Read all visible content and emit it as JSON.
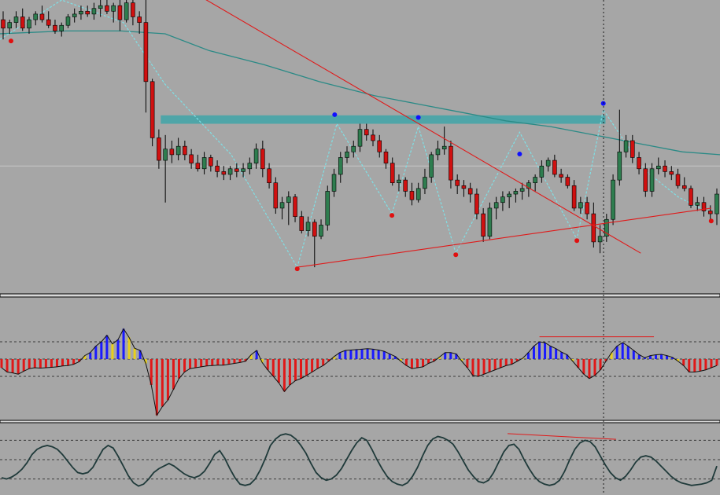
{
  "colors": {
    "background": "#a6a6a6",
    "bull": "#2e7d4f",
    "bear": "#d01010",
    "wick": "#000000",
    "ma": "#2a8a86",
    "zone": "#4fa5a8",
    "trendline": "#e01a1a",
    "zigzag": "#7fe0e6",
    "osc_blue": "#1a1aff",
    "osc_red": "#e01818",
    "osc_yellow": "#e8cf1a",
    "osc_line": "#1f3a3a",
    "fractal_top": "#1010ff",
    "fractal_bottom": "#e01010",
    "separator": "#000000",
    "crosshair": "#1a1a1a"
  },
  "chart_data": [
    {
      "type": "candlestick",
      "panel": "price",
      "y_domain": [
        0,
        100
      ],
      "candles": [
        {
          "o": 93,
          "h": 96,
          "l": 86,
          "c": 90
        },
        {
          "o": 90,
          "h": 93,
          "l": 88,
          "c": 92
        },
        {
          "o": 92,
          "h": 96,
          "l": 90,
          "c": 94
        },
        {
          "o": 94,
          "h": 97,
          "l": 89,
          "c": 90
        },
        {
          "o": 90,
          "h": 94,
          "l": 88,
          "c": 93
        },
        {
          "o": 93,
          "h": 96,
          "l": 91,
          "c": 95
        },
        {
          "o": 95,
          "h": 98,
          "l": 92,
          "c": 93
        },
        {
          "o": 93,
          "h": 96,
          "l": 90,
          "c": 91
        },
        {
          "o": 91,
          "h": 93,
          "l": 88,
          "c": 89
        },
        {
          "o": 89,
          "h": 92,
          "l": 87,
          "c": 91
        },
        {
          "o": 91,
          "h": 95,
          "l": 90,
          "c": 94
        },
        {
          "o": 94,
          "h": 97,
          "l": 92,
          "c": 95
        },
        {
          "o": 95,
          "h": 98,
          "l": 93,
          "c": 96
        },
        {
          "o": 96,
          "h": 98,
          "l": 94,
          "c": 95
        },
        {
          "o": 95,
          "h": 99,
          "l": 93,
          "c": 97
        },
        {
          "o": 97,
          "h": 100,
          "l": 94,
          "c": 98
        },
        {
          "o": 98,
          "h": 100,
          "l": 95,
          "c": 96
        },
        {
          "o": 96,
          "h": 99,
          "l": 92,
          "c": 98
        },
        {
          "o": 98,
          "h": 100,
          "l": 89,
          "c": 93
        },
        {
          "o": 93,
          "h": 100,
          "l": 92,
          "c": 99
        },
        {
          "o": 99,
          "h": 100,
          "l": 91,
          "c": 94
        },
        {
          "o": 94,
          "h": 96,
          "l": 88,
          "c": 92
        },
        {
          "o": 92,
          "h": 100,
          "l": 60,
          "c": 71
        },
        {
          "o": 71,
          "h": 72,
          "l": 48,
          "c": 51
        },
        {
          "o": 51,
          "h": 54,
          "l": 40,
          "c": 43
        },
        {
          "o": 43,
          "h": 52,
          "l": 28,
          "c": 47
        },
        {
          "o": 47,
          "h": 50,
          "l": 42,
          "c": 45
        },
        {
          "o": 45,
          "h": 51,
          "l": 43,
          "c": 48
        },
        {
          "o": 48,
          "h": 50,
          "l": 43,
          "c": 45
        },
        {
          "o": 45,
          "h": 47,
          "l": 40,
          "c": 42
        },
        {
          "o": 42,
          "h": 45,
          "l": 39,
          "c": 40
        },
        {
          "o": 40,
          "h": 46,
          "l": 38,
          "c": 44
        },
        {
          "o": 44,
          "h": 45,
          "l": 39,
          "c": 41
        },
        {
          "o": 41,
          "h": 43,
          "l": 37,
          "c": 39
        },
        {
          "o": 39,
          "h": 41,
          "l": 36,
          "c": 38
        },
        {
          "o": 38,
          "h": 41,
          "l": 36,
          "c": 40
        },
        {
          "o": 40,
          "h": 42,
          "l": 37,
          "c": 39
        },
        {
          "o": 39,
          "h": 42,
          "l": 37,
          "c": 40
        },
        {
          "o": 40,
          "h": 44,
          "l": 38,
          "c": 42
        },
        {
          "o": 42,
          "h": 49,
          "l": 40,
          "c": 47
        },
        {
          "o": 47,
          "h": 50,
          "l": 37,
          "c": 40
        },
        {
          "o": 40,
          "h": 42,
          "l": 33,
          "c": 35
        },
        {
          "o": 35,
          "h": 37,
          "l": 24,
          "c": 26
        },
        {
          "o": 26,
          "h": 30,
          "l": 22,
          "c": 28
        },
        {
          "o": 28,
          "h": 32,
          "l": 20,
          "c": 30
        },
        {
          "o": 30,
          "h": 31,
          "l": 21,
          "c": 23
        },
        {
          "o": 23,
          "h": 25,
          "l": 17,
          "c": 18
        },
        {
          "o": 18,
          "h": 23,
          "l": 16,
          "c": 21
        },
        {
          "o": 21,
          "h": 22,
          "l": 5,
          "c": 16
        },
        {
          "o": 16,
          "h": 22,
          "l": 15,
          "c": 20
        },
        {
          "o": 20,
          "h": 34,
          "l": 18,
          "c": 32
        },
        {
          "o": 32,
          "h": 40,
          "l": 30,
          "c": 38
        },
        {
          "o": 38,
          "h": 46,
          "l": 35,
          "c": 44
        },
        {
          "o": 44,
          "h": 48,
          "l": 42,
          "c": 46
        },
        {
          "o": 46,
          "h": 50,
          "l": 44,
          "c": 48
        },
        {
          "o": 48,
          "h": 56,
          "l": 46,
          "c": 54
        },
        {
          "o": 54,
          "h": 56,
          "l": 50,
          "c": 52
        },
        {
          "o": 52,
          "h": 54,
          "l": 48,
          "c": 50
        },
        {
          "o": 50,
          "h": 52,
          "l": 44,
          "c": 46
        },
        {
          "o": 46,
          "h": 47,
          "l": 40,
          "c": 42
        },
        {
          "o": 42,
          "h": 44,
          "l": 34,
          "c": 35
        },
        {
          "o": 35,
          "h": 38,
          "l": 32,
          "c": 36
        },
        {
          "o": 36,
          "h": 37,
          "l": 30,
          "c": 32
        },
        {
          "o": 32,
          "h": 35,
          "l": 27,
          "c": 29
        },
        {
          "o": 29,
          "h": 35,
          "l": 28,
          "c": 33
        },
        {
          "o": 33,
          "h": 40,
          "l": 31,
          "c": 37
        },
        {
          "o": 37,
          "h": 46,
          "l": 35,
          "c": 45
        },
        {
          "o": 45,
          "h": 50,
          "l": 43,
          "c": 47
        },
        {
          "o": 47,
          "h": 55,
          "l": 45,
          "c": 48
        },
        {
          "o": 48,
          "h": 50,
          "l": 33,
          "c": 36
        },
        {
          "o": 36,
          "h": 38,
          "l": 31,
          "c": 34
        },
        {
          "o": 34,
          "h": 36,
          "l": 30,
          "c": 33
        },
        {
          "o": 33,
          "h": 35,
          "l": 28,
          "c": 31
        },
        {
          "o": 31,
          "h": 33,
          "l": 22,
          "c": 24
        },
        {
          "o": 24,
          "h": 26,
          "l": 14,
          "c": 16
        },
        {
          "o": 16,
          "h": 28,
          "l": 15,
          "c": 26
        },
        {
          "o": 26,
          "h": 30,
          "l": 22,
          "c": 28
        },
        {
          "o": 28,
          "h": 32,
          "l": 25,
          "c": 30
        },
        {
          "o": 30,
          "h": 32,
          "l": 26,
          "c": 31
        },
        {
          "o": 31,
          "h": 33,
          "l": 28,
          "c": 32
        },
        {
          "o": 32,
          "h": 35,
          "l": 29,
          "c": 33
        },
        {
          "o": 33,
          "h": 36,
          "l": 30,
          "c": 35
        },
        {
          "o": 35,
          "h": 38,
          "l": 32,
          "c": 37
        },
        {
          "o": 37,
          "h": 43,
          "l": 35,
          "c": 41
        },
        {
          "o": 41,
          "h": 44,
          "l": 39,
          "c": 43
        },
        {
          "o": 43,
          "h": 45,
          "l": 37,
          "c": 38
        },
        {
          "o": 38,
          "h": 40,
          "l": 35,
          "c": 37
        },
        {
          "o": 37,
          "h": 38,
          "l": 33,
          "c": 34
        },
        {
          "o": 34,
          "h": 36,
          "l": 25,
          "c": 26
        },
        {
          "o": 26,
          "h": 30,
          "l": 24,
          "c": 28
        },
        {
          "o": 28,
          "h": 30,
          "l": 22,
          "c": 24
        },
        {
          "o": 24,
          "h": 28,
          "l": 12,
          "c": 14
        },
        {
          "o": 14,
          "h": 20,
          "l": 10,
          "c": 16
        },
        {
          "o": 16,
          "h": 24,
          "l": 14,
          "c": 22
        },
        {
          "o": 22,
          "h": 38,
          "l": 20,
          "c": 36
        },
        {
          "o": 36,
          "h": 61,
          "l": 34,
          "c": 46
        },
        {
          "o": 46,
          "h": 52,
          "l": 44,
          "c": 50
        },
        {
          "o": 50,
          "h": 52,
          "l": 42,
          "c": 44
        },
        {
          "o": 44,
          "h": 46,
          "l": 38,
          "c": 40
        },
        {
          "o": 40,
          "h": 42,
          "l": 30,
          "c": 32
        },
        {
          "o": 32,
          "h": 42,
          "l": 30,
          "c": 40
        },
        {
          "o": 40,
          "h": 44,
          "l": 38,
          "c": 41
        },
        {
          "o": 41,
          "h": 43,
          "l": 37,
          "c": 39
        },
        {
          "o": 39,
          "h": 41,
          "l": 36,
          "c": 38
        },
        {
          "o": 38,
          "h": 40,
          "l": 33,
          "c": 34
        },
        {
          "o": 34,
          "h": 37,
          "l": 32,
          "c": 33
        },
        {
          "o": 33,
          "h": 34,
          "l": 26,
          "c": 27
        },
        {
          "o": 27,
          "h": 30,
          "l": 25,
          "c": 28
        },
        {
          "o": 28,
          "h": 30,
          "l": 23,
          "c": 25
        },
        {
          "o": 25,
          "h": 27,
          "l": 22,
          "c": 24
        },
        {
          "o": 24,
          "h": 33,
          "l": 20,
          "c": 31
        }
      ]
    },
    {
      "type": "line",
      "panel": "price",
      "role": "moving-average",
      "points": [
        [
          0,
          88
        ],
        [
          30,
          89
        ],
        [
          55,
          89
        ],
        [
          75,
          88
        ],
        [
          95,
          82
        ],
        [
          120,
          77
        ],
        [
          145,
          71
        ],
        [
          170,
          66
        ],
        [
          190,
          63
        ],
        [
          210,
          60
        ],
        [
          230,
          57
        ],
        [
          250,
          55
        ],
        [
          270,
          52
        ],
        [
          290,
          49
        ],
        [
          310,
          46
        ],
        [
          327,
          45
        ]
      ]
    },
    {
      "type": "band",
      "panel": "price",
      "role": "resistance-zone",
      "x_range": [
        73,
        275
      ],
      "y_range": [
        56,
        59
      ]
    },
    {
      "type": "line",
      "panel": "price",
      "role": "zigzag",
      "points": [
        [
          0,
          86
        ],
        [
          28,
          100
        ],
        [
          56,
          92
        ],
        [
          75,
          70
        ],
        [
          105,
          45
        ],
        [
          135,
          5
        ],
        [
          153,
          56
        ],
        [
          178,
          24
        ],
        [
          190,
          55
        ],
        [
          207,
          10
        ],
        [
          236,
          53
        ],
        [
          262,
          15
        ],
        [
          274,
          61
        ],
        [
          292,
          40
        ],
        [
          308,
          30
        ],
        [
          323,
          24
        ]
      ]
    },
    {
      "type": "line",
      "panel": "price",
      "role": "trendline",
      "segments": [
        [
          [
            85,
            104
          ],
          [
            291,
            10
          ]
        ],
        [
          [
            135,
            5
          ],
          [
            323,
            26
          ]
        ]
      ]
    },
    {
      "type": "scatter",
      "panel": "price",
      "role": "fractals",
      "top": [
        [
          152,
          57
        ],
        [
          190,
          56
        ],
        [
          236,
          43
        ],
        [
          274,
          61
        ]
      ],
      "bottom": [
        [
          5,
          86
        ],
        [
          135,
          5
        ],
        [
          178,
          24
        ],
        [
          207,
          10
        ],
        [
          262,
          15
        ],
        [
          323,
          22
        ]
      ]
    },
    {
      "type": "bar",
      "panel": "oscillator-1",
      "y_domain": [
        -1.4,
        1.4
      ],
      "levels": [
        0.4,
        0,
        -0.4
      ],
      "values": [
        -0.2,
        -0.3,
        -0.32,
        -0.35,
        -0.28,
        -0.22,
        -0.2,
        -0.21,
        -0.2,
        -0.19,
        -0.18,
        -0.16,
        -0.15,
        -0.12,
        -0.06,
        0.08,
        0.15,
        0.3,
        0.4,
        0.55,
        0.35,
        0.45,
        0.7,
        0.5,
        0.25,
        0.2,
        -0.1,
        -0.6,
        -1.3,
        -1.1,
        -0.95,
        -0.7,
        -0.45,
        -0.3,
        -0.22,
        -0.2,
        -0.18,
        -0.16,
        -0.15,
        -0.14,
        -0.14,
        -0.12,
        -0.1,
        -0.08,
        -0.05,
        0.1,
        0.2,
        -0.08,
        -0.25,
        -0.4,
        -0.55,
        -0.75,
        -0.6,
        -0.5,
        -0.45,
        -0.38,
        -0.3,
        -0.22,
        -0.15,
        -0.05,
        0.06,
        0.15,
        0.2,
        0.21,
        0.22,
        0.23,
        0.24,
        0.23,
        0.21,
        0.18,
        0.12,
        0.06,
        -0.05,
        -0.15,
        -0.22,
        -0.2,
        -0.18,
        -0.1,
        -0.05,
        0.05,
        0.15,
        0.15,
        0.12,
        -0.05,
        -0.2,
        -0.38,
        -0.4,
        -0.35,
        -0.3,
        -0.25,
        -0.2,
        -0.15,
        -0.12,
        -0.05,
        0.02,
        0.15,
        0.3,
        0.4,
        0.38,
        0.3,
        0.24,
        0.16,
        0.1,
        -0.05,
        -0.2,
        -0.35,
        -0.45,
        -0.38,
        -0.25,
        -0.05,
        0.15,
        0.3,
        0.38,
        0.3,
        0.2,
        0.1,
        0.03,
        0.08,
        0.1,
        0.11,
        0.08,
        0.04,
        -0.05,
        -0.15,
        -0.3,
        -0.3,
        -0.28,
        -0.25,
        -0.2,
        -0.15
      ],
      "signal_segment": [
        [
          245,
          0.48
        ],
        [
          297,
          0.48
        ]
      ]
    },
    {
      "type": "line",
      "panel": "oscillator-2",
      "y_domain": [
        0,
        100
      ],
      "levels": [
        80,
        50,
        20
      ],
      "values": [
        22,
        20,
        23,
        28,
        35,
        45,
        58,
        66,
        70,
        72,
        70,
        66,
        58,
        48,
        38,
        30,
        28,
        30,
        38,
        52,
        66,
        72,
        68,
        55,
        40,
        25,
        14,
        9,
        12,
        20,
        30,
        36,
        40,
        44,
        40,
        34,
        28,
        24,
        22,
        25,
        32,
        44,
        58,
        64,
        52,
        36,
        22,
        12,
        10,
        12,
        20,
        34,
        52,
        72,
        82,
        88,
        90,
        88,
        82,
        72,
        60,
        44,
        30,
        22,
        18,
        20,
        26,
        36,
        50,
        64,
        76,
        84,
        80,
        66,
        50,
        36,
        24,
        16,
        12,
        10,
        14,
        24,
        38,
        56,
        72,
        82,
        86,
        84,
        80,
        74,
        62,
        48,
        34,
        24,
        16,
        14,
        18,
        30,
        46,
        62,
        72,
        74,
        66,
        50,
        36,
        24,
        16,
        12,
        10,
        12,
        18,
        32,
        50,
        66,
        76,
        80,
        78,
        70,
        56,
        42,
        30,
        22,
        18,
        24,
        34,
        46,
        54,
        56,
        54,
        48,
        40,
        32,
        24,
        18,
        14,
        12,
        10,
        11,
        12,
        14,
        18,
        40
      ]
    }
  ]
}
